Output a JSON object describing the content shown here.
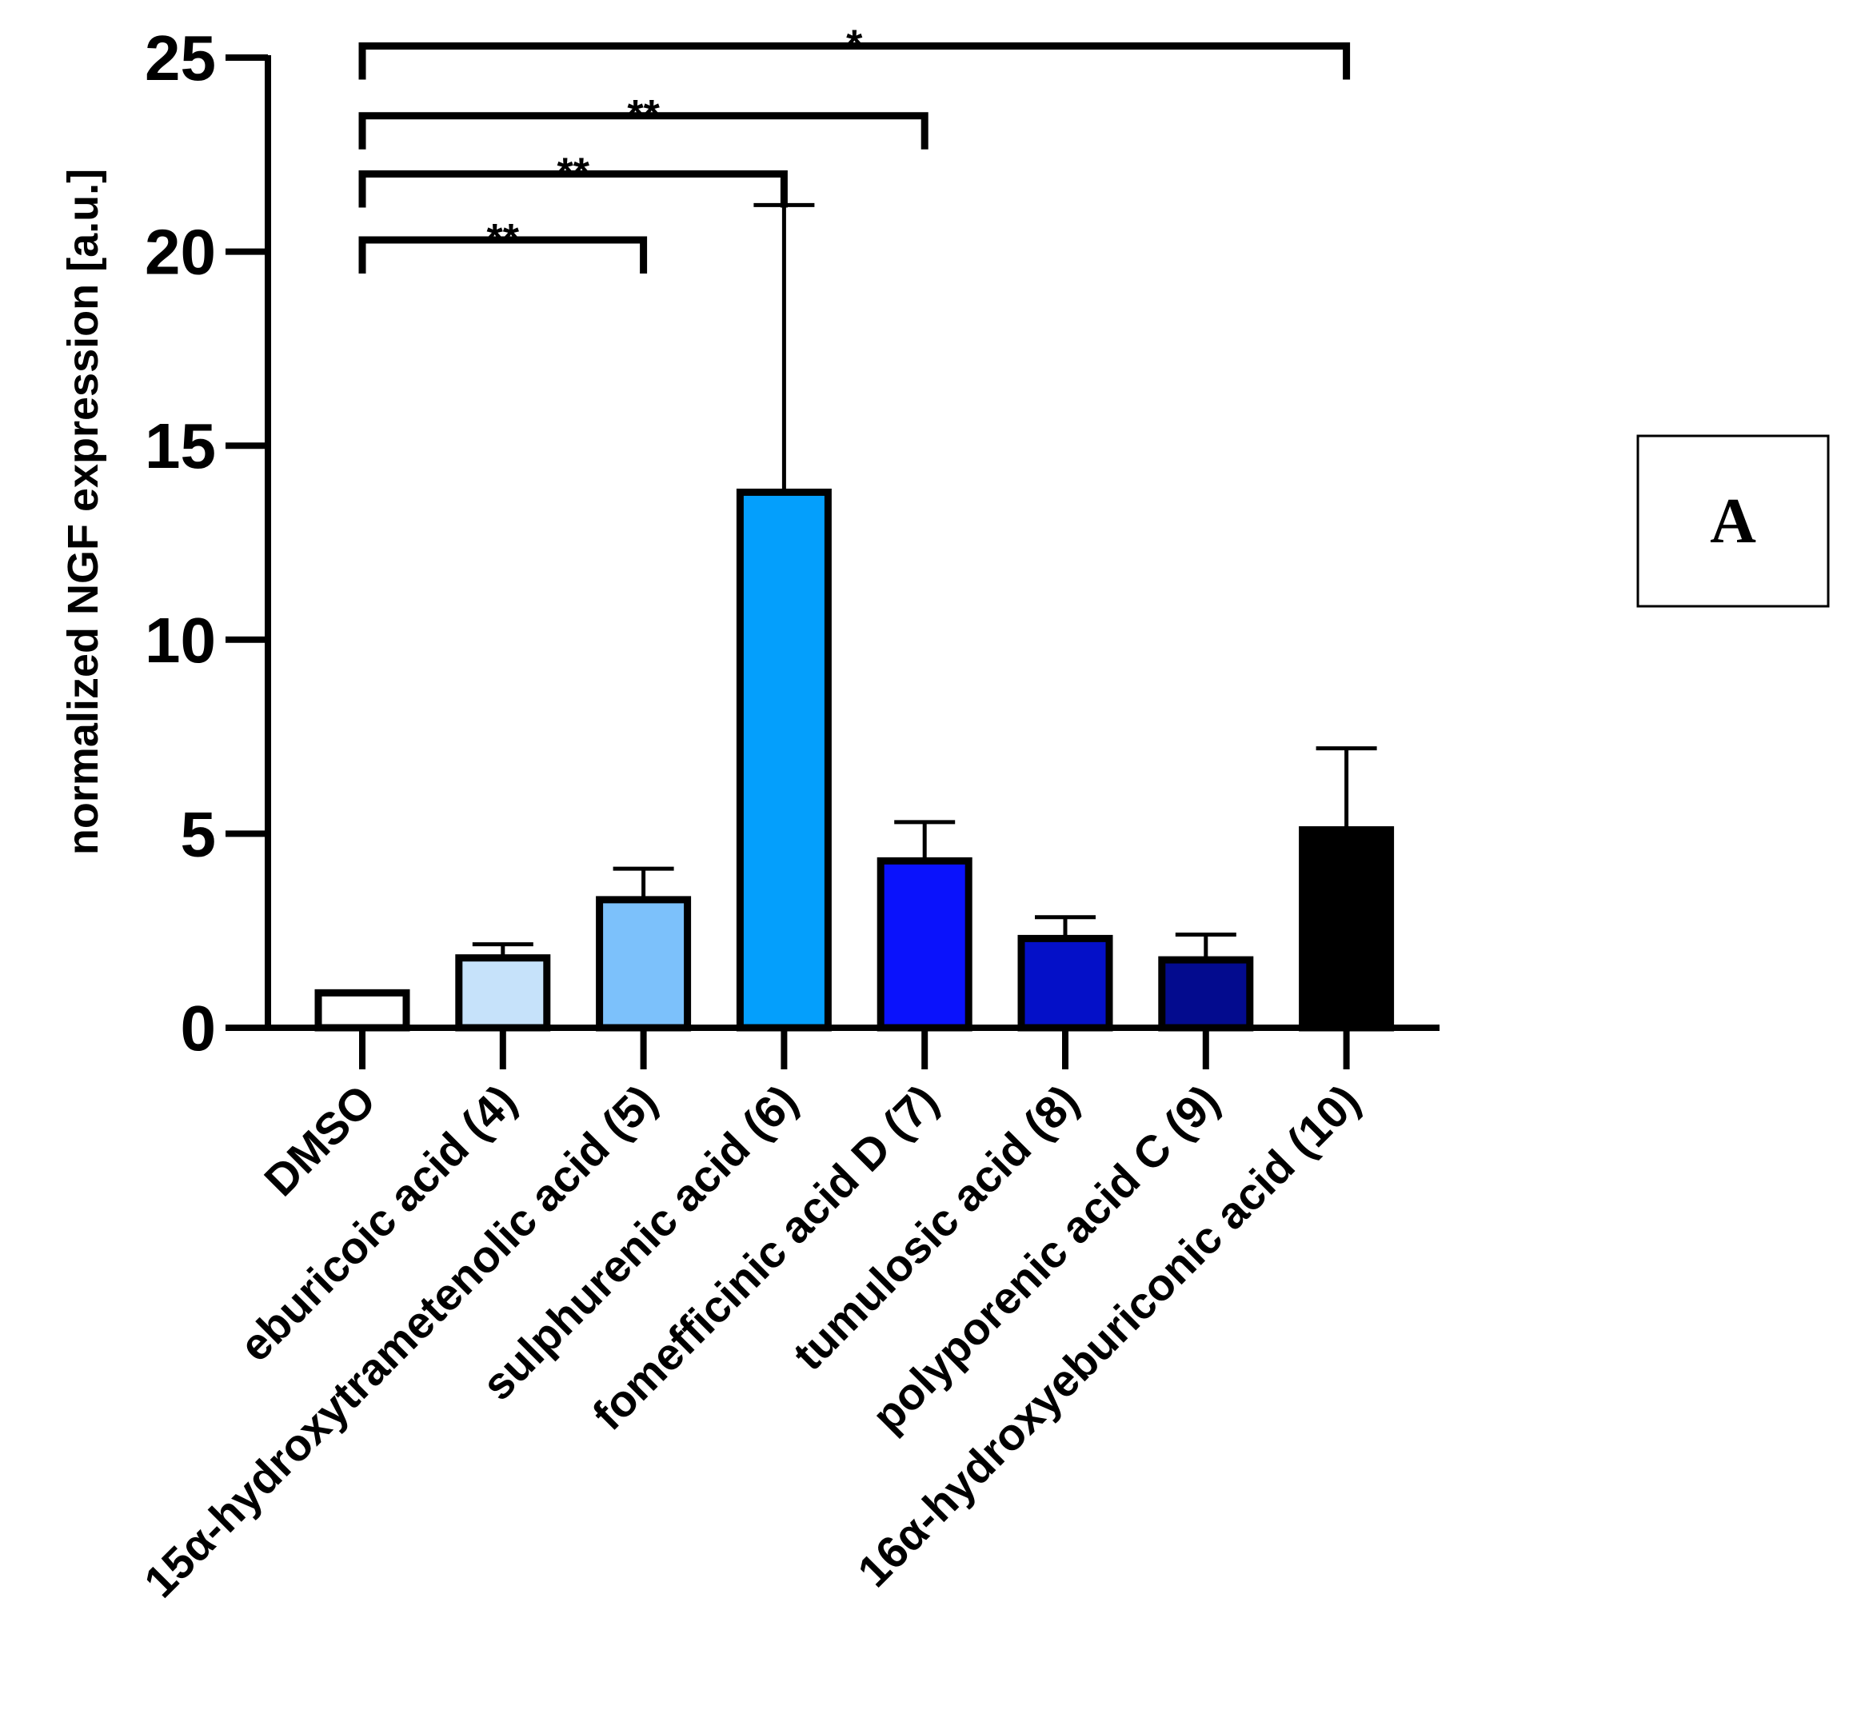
{
  "panel_label": "A",
  "chart_data": {
    "type": "bar",
    "ylabel": "normalized NGF expression [a.u.]",
    "xlabel": "",
    "ylim": [
      0,
      25
    ],
    "yticks": [
      0,
      5,
      10,
      15,
      20,
      25
    ],
    "yticks_labels": [
      "0",
      "5",
      "10",
      "15",
      "20",
      "25"
    ],
    "categories": [
      "DMSO",
      "eburicoic acid (4)",
      "15α-hydroxytrametenolic acid (5)",
      "sulphurenic acid (6)",
      "fomefficinic acid D (7)",
      "tumulosic acid (8)",
      "polyporenic acid C (9)",
      "16α-hydroxyeburiconic acid (10)"
    ],
    "values": [
      0.9,
      1.8,
      3.3,
      13.8,
      4.3,
      2.3,
      1.75,
      5.1
    ],
    "error_upper": [
      0.9,
      2.15,
      4.1,
      21.2,
      5.3,
      2.85,
      2.4,
      7.2
    ],
    "bar_colors": [
      "#ffffff",
      "#c6e2fa",
      "#7cc1fb",
      "#049ffc",
      "#0a12fc",
      "#0410c8",
      "#030b8e",
      "#000000"
    ],
    "significance": [
      {
        "from": 0,
        "to": 2,
        "label": "**",
        "y": 20.3
      },
      {
        "from": 0,
        "to": 3,
        "label": "**",
        "y": 22.0
      },
      {
        "from": 0,
        "to": 4,
        "label": "**",
        "y": 23.5
      },
      {
        "from": 0,
        "to": 7,
        "label": "*",
        "y": 25.3
      }
    ]
  }
}
